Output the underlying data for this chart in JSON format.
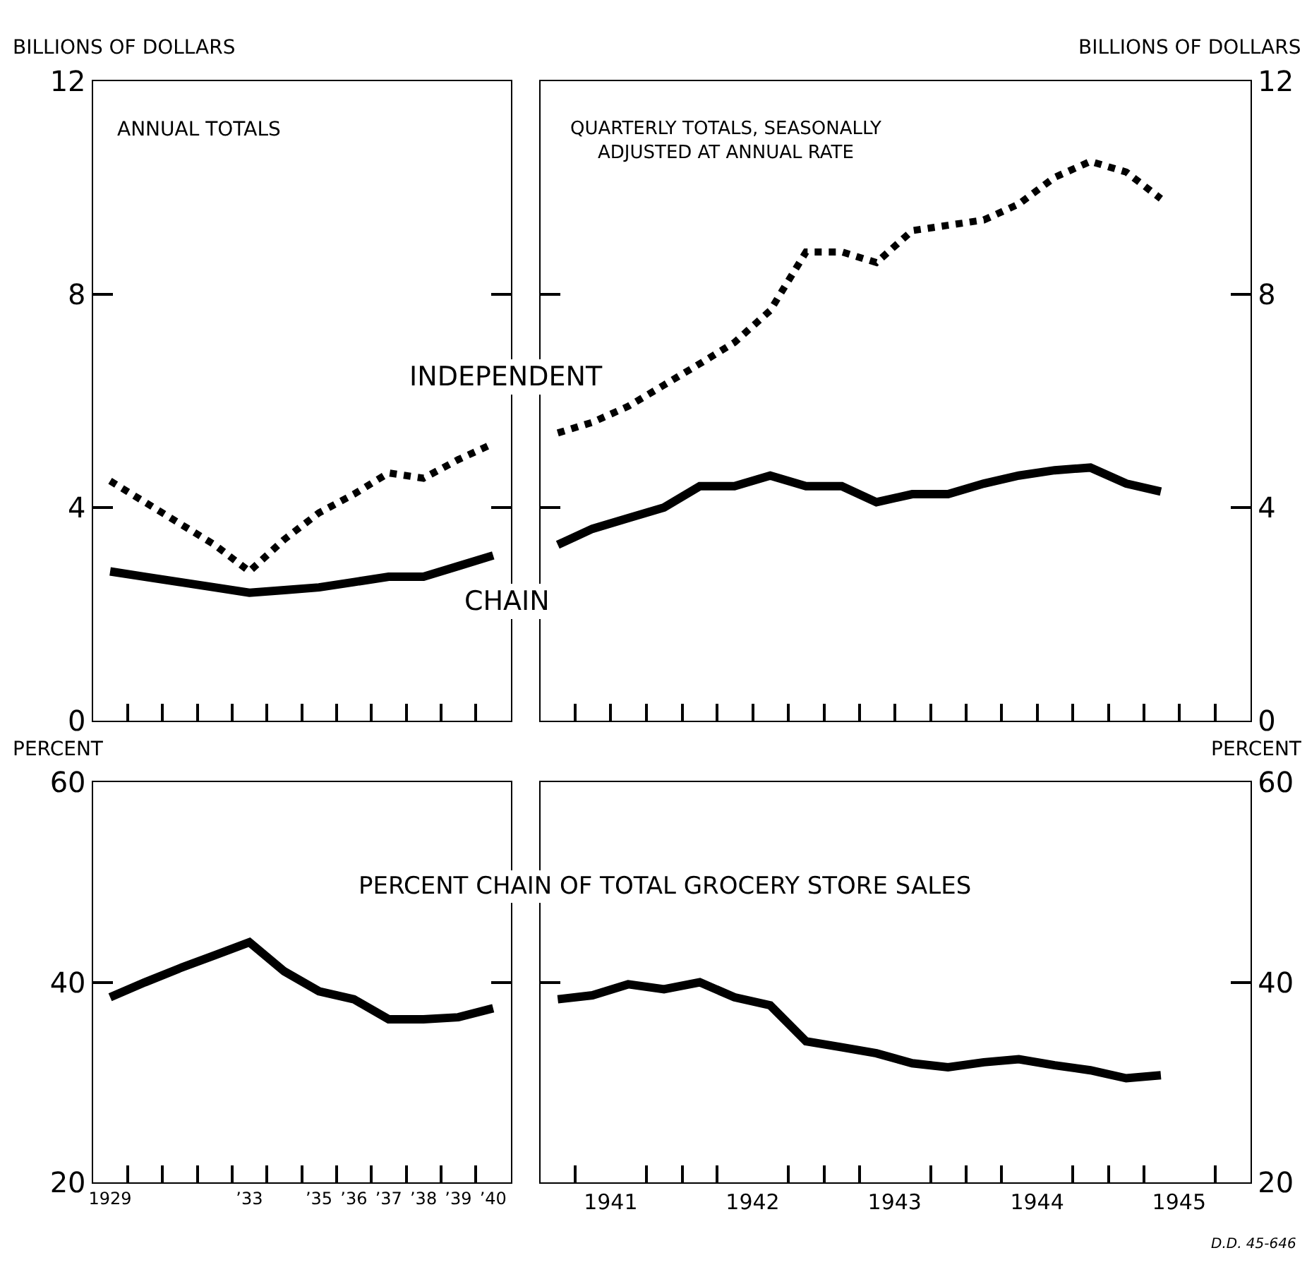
{
  "chart_data": [
    {
      "type": "line",
      "ylabel": "BILLIONS OF DOLLARS",
      "annotations": [
        "ANNUAL TOTALS"
      ],
      "x": [
        "1929-07",
        "1930-07",
        "1931-07",
        "1932-07",
        "1933-07",
        "1934-07",
        "1935-07",
        "1936-07",
        "1937-07",
        "1938-07",
        "1939-07",
        "1940-07"
      ],
      "series": [
        {
          "name": "INDEPENDENT",
          "color": "#000000",
          "line_style": "dotted",
          "values": [
            4.5,
            4.1,
            3.7,
            3.3,
            2.8,
            3.4,
            3.9,
            4.25,
            4.65,
            4.55,
            4.9,
            5.2
          ]
        },
        {
          "name": "CHAIN",
          "color": "#000000",
          "line_style": "solid",
          "values": [
            2.8,
            2.7,
            2.6,
            2.5,
            2.4,
            2.45,
            2.5,
            2.6,
            2.7,
            2.7,
            2.9,
            3.1
          ]
        }
      ],
      "xlim": [
        "1929",
        "1941"
      ],
      "xticks": [
        {
          "value": "1930",
          "label": null
        },
        {
          "value": "1931",
          "label": null
        },
        {
          "value": "1932",
          "label": null
        },
        {
          "value": "1933",
          "label": null
        },
        {
          "value": "1934",
          "label": null
        },
        {
          "value": "1935",
          "label": null
        },
        {
          "value": "1936",
          "label": null
        },
        {
          "value": "1937",
          "label": null
        },
        {
          "value": "1938",
          "label": null
        },
        {
          "value": "1939",
          "label": null
        },
        {
          "value": "1940",
          "label": null
        }
      ],
      "ylim": [
        0,
        12
      ],
      "yticks": [
        0,
        4,
        8,
        12
      ],
      "tick_labels": "y",
      "legend": false,
      "grid": false
    },
    {
      "type": "line",
      "ylabel": "BILLIONS OF DOLLARS",
      "annotations": [
        "QUARTERLY TOTALS, SEASONALLY\nADJUSTED AT ANNUAL RATE"
      ],
      "x": [
        "1941-02-15",
        "1941-05-15",
        "1941-08-15",
        "1941-11-15",
        "1942-02-15",
        "1942-05-15",
        "1942-08-15",
        "1942-11-15",
        "1943-02-15",
        "1943-05-15",
        "1943-08-15",
        "1943-11-15",
        "1944-02-15",
        "1944-05-15",
        "1944-08-15",
        "1944-11-15",
        "1945-02-15",
        "1945-05-15"
      ],
      "series": [
        {
          "color": "#000000",
          "line_style": "dotted",
          "values": [
            5.4,
            5.6,
            5.9,
            6.3,
            6.7,
            7.1,
            7.7,
            8.8,
            8.8,
            8.6,
            9.2,
            9.3,
            9.4,
            9.7,
            10.2,
            10.5,
            10.3,
            9.8
          ]
        },
        {
          "color": "#000000",
          "line_style": "solid",
          "values": [
            3.3,
            3.6,
            3.8,
            4.0,
            4.4,
            4.4,
            4.6,
            4.4,
            4.4,
            4.1,
            4.25,
            4.25,
            4.45,
            4.6,
            4.7,
            4.75,
            4.45,
            4.3
          ]
        }
      ],
      "xlim": [
        "1941",
        "1946"
      ],
      "xticks": [
        {
          "value": "1941-04",
          "label": null
        },
        {
          "value": "1941-07",
          "label": null
        },
        {
          "value": "1941-10",
          "label": null
        },
        {
          "value": "1942",
          "label": null
        },
        {
          "value": "1942-04",
          "label": null
        },
        {
          "value": "1942-07",
          "label": null
        },
        {
          "value": "1942-10",
          "label": null
        },
        {
          "value": "1943",
          "label": null
        },
        {
          "value": "1943-04",
          "label": null
        },
        {
          "value": "1943-07",
          "label": null
        },
        {
          "value": "1943-10",
          "label": null
        },
        {
          "value": "1944",
          "label": null
        },
        {
          "value": "1944-04",
          "label": null
        },
        {
          "value": "1944-07",
          "label": null
        },
        {
          "value": "1944-10",
          "label": null
        },
        {
          "value": "1945",
          "label": null
        },
        {
          "value": "1945-04",
          "label": null
        },
        {
          "value": "1945-07",
          "label": null
        },
        {
          "value": "1945-10",
          "label": null
        }
      ],
      "ylim": [
        0,
        12
      ],
      "yticks": [
        0,
        4,
        8,
        12
      ],
      "tick_labels": "y",
      "legend": false,
      "grid": false
    },
    {
      "type": "line",
      "ylabel": "PERCENT",
      "annotations": [
        "PERCENT CHAIN OF TOTAL GROCERY STORE SALES"
      ],
      "x": [
        "1929-07",
        "1930-07",
        "1931-07",
        "1932-07",
        "1933-07",
        "1934-07",
        "1935-07",
        "1936-07",
        "1937-07",
        "1938-07",
        "1939-07",
        "1940-07"
      ],
      "series": [
        {
          "color": "#000000",
          "line_style": "solid",
          "values": [
            38.5,
            40.0,
            41.4,
            42.7,
            44.0,
            41.1,
            39.1,
            38.3,
            36.3,
            36.3,
            36.5,
            37.4
          ]
        }
      ],
      "xlim": [
        "1929",
        "1941"
      ],
      "xticks": [
        {
          "value": "1929-07",
          "label": "1929"
        },
        {
          "value": "1930",
          "label": null
        },
        {
          "value": "1931",
          "label": null
        },
        {
          "value": "1932",
          "label": null
        },
        {
          "value": "1933",
          "label": null
        },
        {
          "value": "1933-07",
          "label": "’33"
        },
        {
          "value": "1934",
          "label": null
        },
        {
          "value": "1935",
          "label": null
        },
        {
          "value": "1935-07",
          "label": "’35"
        },
        {
          "value": "1936",
          "label": null
        },
        {
          "value": "1936-07",
          "label": "’36"
        },
        {
          "value": "1937",
          "label": null
        },
        {
          "value": "1937-07",
          "label": "’37"
        },
        {
          "value": "1938",
          "label": null
        },
        {
          "value": "1938-07",
          "label": "’38"
        },
        {
          "value": "1939",
          "label": null
        },
        {
          "value": "1939-07",
          "label": "’39"
        },
        {
          "value": "1940",
          "label": null
        },
        {
          "value": "1940-07",
          "label": "’40"
        }
      ],
      "ylim": [
        20,
        60
      ],
      "yticks": [
        20,
        40,
        60
      ],
      "legend": false,
      "grid": false
    },
    {
      "type": "line",
      "ylabel": "PERCENT",
      "annotations": [
        "D.D. 45-646"
      ],
      "x": [
        "1941-02-15",
        "1941-05-15",
        "1941-08-15",
        "1941-11-15",
        "1942-02-15",
        "1942-05-15",
        "1942-08-15",
        "1942-11-15",
        "1943-02-15",
        "1943-05-15",
        "1943-08-15",
        "1943-11-15",
        "1944-02-15",
        "1944-05-15",
        "1944-08-15",
        "1944-11-15",
        "1945-02-15",
        "1945-05-15"
      ],
      "series": [
        {
          "color": "#000000",
          "line_style": "solid",
          "values": [
            38.3,
            38.7,
            39.8,
            39.3,
            40.0,
            38.5,
            37.7,
            34.1,
            33.5,
            32.9,
            31.9,
            31.5,
            32.0,
            32.3,
            31.7,
            31.2,
            30.4,
            30.7
          ]
        }
      ],
      "xlim": [
        "1941",
        "1946"
      ],
      "xticks": [
        {
          "value": "1941-04",
          "label": null
        },
        {
          "value": "1941-07",
          "label": "1941"
        },
        {
          "value": "1941-10",
          "label": null
        },
        {
          "value": "1942",
          "label": null
        },
        {
          "value": "1942-04",
          "label": null
        },
        {
          "value": "1942-07",
          "label": "1942"
        },
        {
          "value": "1942-10",
          "label": null
        },
        {
          "value": "1943",
          "label": null
        },
        {
          "value": "1943-04",
          "label": null
        },
        {
          "value": "1943-07",
          "label": "1943"
        },
        {
          "value": "1943-10",
          "label": null
        },
        {
          "value": "1944",
          "label": null
        },
        {
          "value": "1944-04",
          "label": null
        },
        {
          "value": "1944-07",
          "label": "1944"
        },
        {
          "value": "1944-10",
          "label": null
        },
        {
          "value": "1945",
          "label": null
        },
        {
          "value": "1945-04",
          "label": null
        },
        {
          "value": "1945-07",
          "label": "1945"
        },
        {
          "value": "1945-10",
          "label": null
        }
      ],
      "ylim": [
        20,
        60
      ],
      "yticks": [
        20,
        40,
        60
      ],
      "legend": false,
      "grid": false
    }
  ]
}
